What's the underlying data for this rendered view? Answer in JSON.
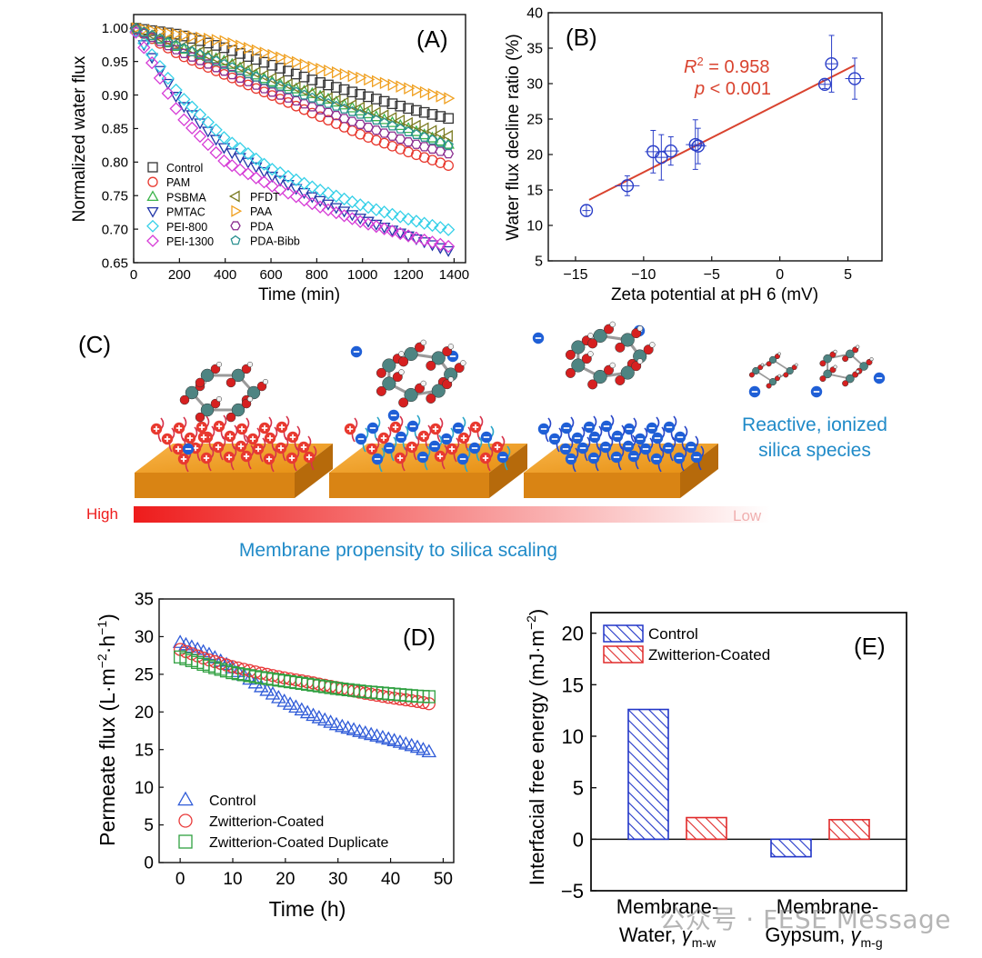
{
  "panels": {
    "A": "(A)",
    "B": "(B)",
    "C": "(C)",
    "D": "(D)",
    "E": "(E)"
  },
  "chart_data": [
    {
      "id": "A",
      "type": "scatter",
      "xlabel": "Time (min)",
      "ylabel": "Normalized water flux",
      "xlim": [
        0,
        1450
      ],
      "ylim": [
        0.65,
        1.02
      ],
      "xticks": [
        0,
        200,
        400,
        600,
        800,
        1000,
        1200,
        1400
      ],
      "yticks": [
        0.65,
        0.7,
        0.75,
        0.8,
        0.85,
        0.9,
        0.95,
        1.0
      ],
      "ytick_labels": [
        "0.65",
        "0.70",
        "0.75",
        "0.80",
        "0.85",
        "0.90",
        "0.95",
        "1.00"
      ],
      "legend_placement": "bottom-left",
      "series": [
        {
          "name": "Control",
          "color": "#333333",
          "marker": "square",
          "x": [
            0,
            200,
            400,
            600,
            800,
            1000,
            1200,
            1400
          ],
          "y": [
            1.0,
            0.99,
            0.97,
            0.945,
            0.92,
            0.9,
            0.88,
            0.863
          ]
        },
        {
          "name": "PAM",
          "color": "#e8392f",
          "marker": "circle",
          "x": [
            0,
            200,
            400,
            600,
            800,
            1000,
            1200,
            1400
          ],
          "y": [
            1.0,
            0.96,
            0.93,
            0.9,
            0.87,
            0.84,
            0.815,
            0.792
          ]
        },
        {
          "name": "PSBMA",
          "color": "#3cb44b",
          "marker": "triangle-up",
          "x": [
            0,
            200,
            400,
            600,
            800,
            1000,
            1200,
            1400
          ],
          "y": [
            1.0,
            0.97,
            0.95,
            0.92,
            0.9,
            0.875,
            0.85,
            0.823
          ]
        },
        {
          "name": "PMTAC",
          "color": "#2236a8",
          "marker": "triangle-down",
          "x": [
            0,
            200,
            400,
            600,
            800,
            1000,
            1200,
            1400
          ],
          "y": [
            1.0,
            0.89,
            0.82,
            0.78,
            0.745,
            0.715,
            0.69,
            0.665
          ]
        },
        {
          "name": "PEI-800",
          "color": "#35d0e8",
          "marker": "diamond",
          "x": [
            0,
            200,
            400,
            600,
            800,
            1000,
            1200,
            1400
          ],
          "y": [
            1.0,
            0.9,
            0.835,
            0.79,
            0.76,
            0.735,
            0.715,
            0.697
          ]
        },
        {
          "name": "PEI-1300",
          "color": "#d63bd6",
          "marker": "diamond",
          "x": [
            0,
            200,
            400,
            600,
            800,
            1000,
            1200,
            1400
          ],
          "y": [
            1.0,
            0.87,
            0.8,
            0.765,
            0.735,
            0.71,
            0.69,
            0.672
          ]
        },
        {
          "name": "PFDT",
          "color": "#7a7a20",
          "marker": "triangle-left",
          "x": [
            0,
            200,
            400,
            600,
            800,
            1000,
            1200,
            1400
          ],
          "y": [
            1.0,
            0.975,
            0.95,
            0.925,
            0.9,
            0.88,
            0.858,
            0.836
          ]
        },
        {
          "name": "PAA",
          "color": "#f0a020",
          "marker": "triangle-right",
          "x": [
            0,
            200,
            400,
            600,
            800,
            1000,
            1200,
            1400
          ],
          "y": [
            1.0,
            0.99,
            0.98,
            0.96,
            0.94,
            0.925,
            0.91,
            0.893
          ]
        },
        {
          "name": "PDA",
          "color": "#8a2d8f",
          "marker": "hexagon",
          "x": [
            0,
            200,
            400,
            600,
            800,
            1000,
            1200,
            1400
          ],
          "y": [
            1.0,
            0.965,
            0.935,
            0.905,
            0.88,
            0.855,
            0.83,
            0.81
          ]
        },
        {
          "name": "PDA-Bibb",
          "color": "#2a9090",
          "marker": "pentagon",
          "x": [
            0,
            200,
            400,
            600,
            800,
            1000,
            1200,
            1400
          ],
          "y": [
            1.0,
            0.972,
            0.945,
            0.918,
            0.893,
            0.87,
            0.845,
            0.822
          ]
        }
      ]
    },
    {
      "id": "B",
      "type": "scatter",
      "xlabel": "Zeta potential at pH 6 (mV)",
      "ylabel": "Water flux decline ratio (%)",
      "xlim": [
        -17,
        7.5
      ],
      "ylim": [
        5,
        40
      ],
      "xticks": [
        -15,
        -10,
        -5,
        0,
        5
      ],
      "xtick_labels": [
        "−15",
        "−10",
        "−5",
        "0",
        "5"
      ],
      "yticks": [
        5,
        10,
        15,
        20,
        25,
        30,
        35,
        40
      ],
      "annotation_r2": "R",
      "annotation_r2_sup": "2",
      "annotation_r2_value": " = 0.958",
      "annotation_p": "p",
      "annotation_p_value": " < 0.001",
      "marker_color": "#2a3ec8",
      "fit_color": "#d9432f",
      "fit_line": {
        "x": [
          -14,
          5.5
        ],
        "y": [
          13.6,
          32.6
        ]
      },
      "points": [
        {
          "x": -14.2,
          "y": 12.1,
          "xerr": 0.3,
          "yerr": 0.8
        },
        {
          "x": -11.2,
          "y": 15.6,
          "xerr": 0.9,
          "yerr": 1.4
        },
        {
          "x": -9.3,
          "y": 20.4,
          "xerr": 0.6,
          "yerr": 3.0
        },
        {
          "x": -8.7,
          "y": 19.6,
          "xerr": 0.5,
          "yerr": 3.2
        },
        {
          "x": -8.0,
          "y": 20.5,
          "xerr": 0.6,
          "yerr": 2.0
        },
        {
          "x": -6.2,
          "y": 21.4,
          "xerr": 0.7,
          "yerr": 3.5
        },
        {
          "x": -6.0,
          "y": 21.2,
          "xerr": 0.6,
          "yerr": 2.5
        },
        {
          "x": 3.3,
          "y": 29.9,
          "xerr": 0.4,
          "yerr": 0.6
        },
        {
          "x": 3.8,
          "y": 32.8,
          "xerr": 0.4,
          "yerr": 4.0
        },
        {
          "x": 5.5,
          "y": 30.7,
          "xerr": 0.7,
          "yerr": 2.9
        }
      ]
    },
    {
      "id": "D",
      "type": "scatter",
      "xlabel": "Time (h)",
      "ylabel": "Permeate flux (L·m",
      "ylabel_sup1": "−2",
      "ylabel_mid": "·h",
      "ylabel_sup2": "−1",
      "ylabel_end": ")",
      "xlim": [
        -4,
        52
      ],
      "ylim": [
        0,
        35
      ],
      "xticks": [
        0,
        10,
        20,
        30,
        40,
        50
      ],
      "yticks": [
        0,
        5,
        10,
        15,
        20,
        25,
        30,
        35
      ],
      "legend_placement": "bottom-left",
      "series": [
        {
          "name": "Control",
          "color": "#2f5bd8",
          "marker": "triangle-up",
          "x": [
            0,
            5,
            10,
            15,
            20,
            25,
            30,
            35,
            40,
            45,
            48
          ],
          "y": [
            29.2,
            27.8,
            25.8,
            23.5,
            21.3,
            19.6,
            18.2,
            17.2,
            16.3,
            15.3,
            14.5
          ]
        },
        {
          "name": "Zwitterion-Coated",
          "color": "#e83a3a",
          "marker": "circle",
          "x": [
            0,
            5,
            10,
            15,
            20,
            25,
            30,
            35,
            40,
            45,
            48
          ],
          "y": [
            28.3,
            27.0,
            26.0,
            25.2,
            24.5,
            23.9,
            23.2,
            22.5,
            21.9,
            21.4,
            21.0
          ]
        },
        {
          "name": "Zwitterion-Coated Duplicate",
          "color": "#2fa040",
          "marker": "square",
          "x": [
            0,
            5,
            10,
            15,
            20,
            25,
            30,
            35,
            40,
            45,
            48
          ],
          "y": [
            27.3,
            26.2,
            25.2,
            24.6,
            24.1,
            23.6,
            23.1,
            22.7,
            22.4,
            22.1,
            22.0
          ]
        }
      ]
    },
    {
      "id": "E",
      "type": "bar",
      "ylabel": "Interfacial free energy (mJ·m",
      "ylabel_sup": "−2",
      "ylabel_end": ")",
      "ylim": [
        -5,
        22
      ],
      "yticks": [
        -5,
        0,
        5,
        10,
        15,
        20
      ],
      "ytick_labels": [
        "−5",
        "0",
        "5",
        "10",
        "15",
        "20"
      ],
      "categories": [
        {
          "line1": "Membrane-",
          "line2": "Water, ",
          "symbol": "γ",
          "sub": "m-w"
        },
        {
          "line1": "Membrane-",
          "line2": "Gypsum, ",
          "symbol": "γ",
          "sub": "m-g"
        }
      ],
      "legend_placement": "top-left",
      "series": [
        {
          "name": "Control",
          "color": "#2236c8",
          "values": [
            12.6,
            -1.7
          ]
        },
        {
          "name": "Zwitterion-Coated",
          "color": "#e02a2a",
          "values": [
            2.1,
            1.9
          ]
        }
      ]
    }
  ],
  "schematic": {
    "gradient_high": "High",
    "gradient_low": "Low",
    "propensity_caption": "Membrane propensity to silica scaling",
    "species_caption_line1": "Reactive, ionized",
    "species_caption_line2": "silica species",
    "colors": {
      "membrane": "#f5a623",
      "membrane_side": "#c8770f",
      "positive": "#e8392f",
      "negative": "#1f5fd6",
      "caption": "#1f8ac8"
    }
  },
  "watermark": "公众号 · FESE Message"
}
